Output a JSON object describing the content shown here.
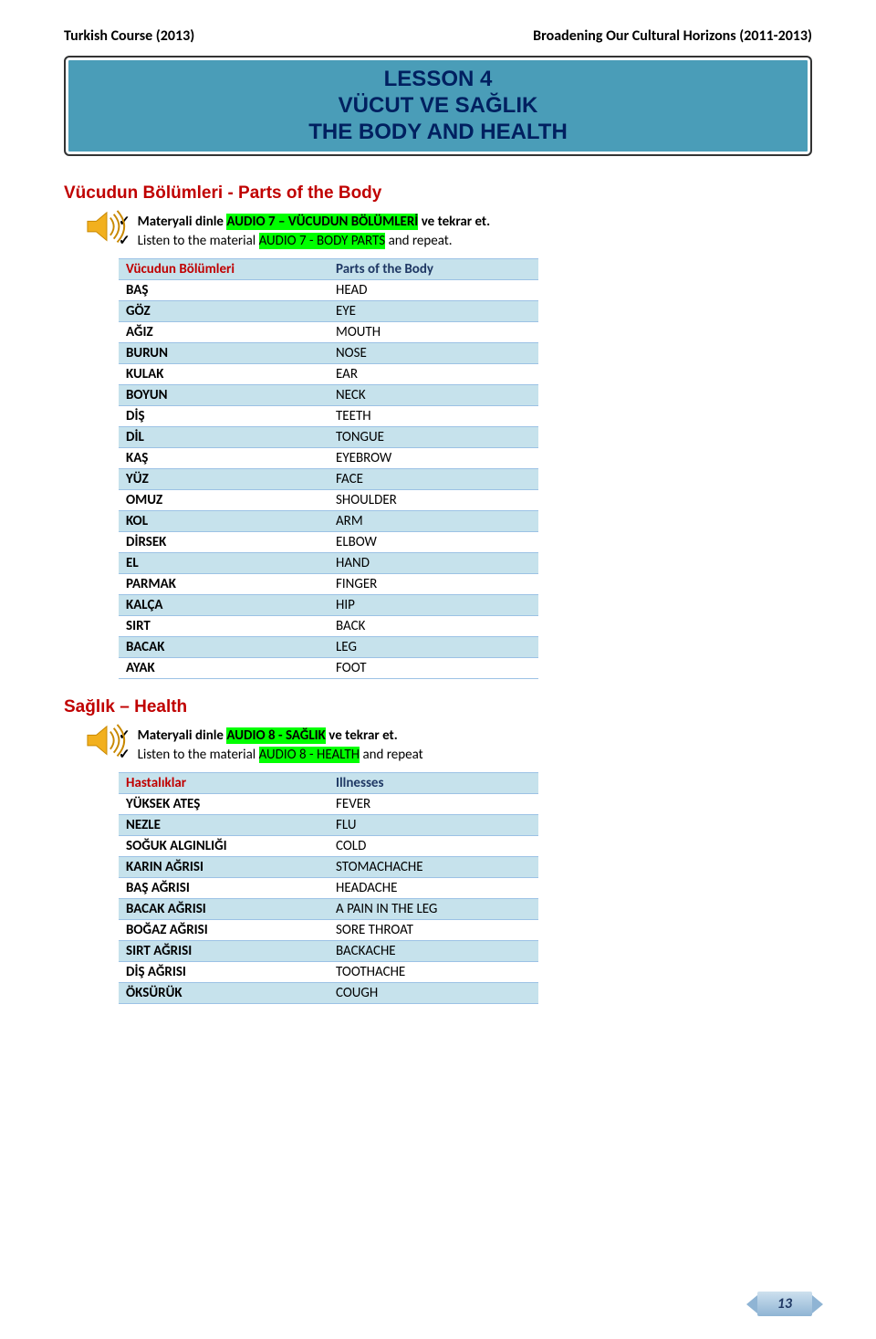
{
  "header": {
    "left": "Turkish Course (2013)",
    "right": "Broadening Our Cultural Horizons (2011-2013)"
  },
  "lesson_box": {
    "line1": "LESSON 4",
    "line2": "VÜCUT VE SAĞLIK",
    "line3": "THE BODY AND HEALTH",
    "bg_color": "#4a9db8",
    "text_color": "#002060"
  },
  "section1": {
    "title": "Vücudun Bölümleri - Parts of the Body",
    "check1_pre": "Materyali dinle ",
    "check1_hl": "AUDIO 7 – VÜCUDUN BÖLÜMLERİ",
    "check1_post": " ve tekrar et.",
    "check2_pre": "Listen to the material ",
    "check2_hl": "AUDIO 7 - BODY PARTS",
    "check2_post": " and repeat."
  },
  "table1": {
    "header_tr": "Vücudun Bölümleri",
    "header_en": "Parts of the Body",
    "rows": [
      {
        "tr": "BAŞ",
        "en": "HEAD"
      },
      {
        "tr": "GÖZ",
        "en": "EYE"
      },
      {
        "tr": "AĞIZ",
        "en": "MOUTH"
      },
      {
        "tr": "BURUN",
        "en": "NOSE"
      },
      {
        "tr": "KULAK",
        "en": "EAR"
      },
      {
        "tr": "BOYUN",
        "en": "NECK"
      },
      {
        "tr": "DİŞ",
        "en": "TEETH"
      },
      {
        "tr": "DİL",
        "en": "TONGUE"
      },
      {
        "tr": "KAŞ",
        "en": "EYEBROW"
      },
      {
        "tr": "YÜZ",
        "en": "FACE"
      },
      {
        "tr": "OMUZ",
        "en": "SHOULDER"
      },
      {
        "tr": "KOL",
        "en": "ARM"
      },
      {
        "tr": "DİRSEK",
        "en": "ELBOW"
      },
      {
        "tr": "EL",
        "en": "HAND"
      },
      {
        "tr": "PARMAK",
        "en": "FINGER"
      },
      {
        "tr": "KALÇA",
        "en": "HIP"
      },
      {
        "tr": "SIRT",
        "en": "BACK"
      },
      {
        "tr": "BACAK",
        "en": "LEG"
      },
      {
        "tr": "AYAK",
        "en": "FOOT"
      }
    ]
  },
  "section2": {
    "title": "Sağlık – Health",
    "check1_pre": "Materyali dinle ",
    "check1_hl": "AUDIO 8 - SAĞLIK",
    "check1_post": " ve tekrar et.",
    "check2_pre": "Listen to the material ",
    "check2_hl": "AUDIO 8 - HEALTH",
    "check2_post": " and repeat"
  },
  "table2": {
    "header_tr": "Hastalıklar",
    "header_en": "Illnesses",
    "rows": [
      {
        "tr": "YÜKSEK ATEŞ",
        "en": "FEVER"
      },
      {
        "tr": "NEZLE",
        "en": "FLU"
      },
      {
        "tr": "SOĞUK ALGINLIĞI",
        "en": "COLD"
      },
      {
        "tr": "KARIN AĞRISI",
        "en": "STOMACHACHE"
      },
      {
        "tr": "BAŞ AĞRISI",
        "en": "HEADACHE"
      },
      {
        "tr": "BACAK AĞRISI",
        "en": "A PAIN IN THE LEG"
      },
      {
        "tr": "BOĞAZ AĞRISI",
        "en": "SORE THROAT"
      },
      {
        "tr": "SIRT AĞRISI",
        "en": "BACKACHE"
      },
      {
        "tr": "DİŞ AĞRISI",
        "en": "TOOTHACHE"
      },
      {
        "tr": "ÖKSÜRÜK",
        "en": "COUGH"
      }
    ]
  },
  "page_number": "13",
  "colors": {
    "shade": "#c6e2ec",
    "border": "#9cc2e5",
    "highlight": "#00ff00",
    "header_tr_color": "#c00000",
    "header_en_color": "#1f3864"
  }
}
